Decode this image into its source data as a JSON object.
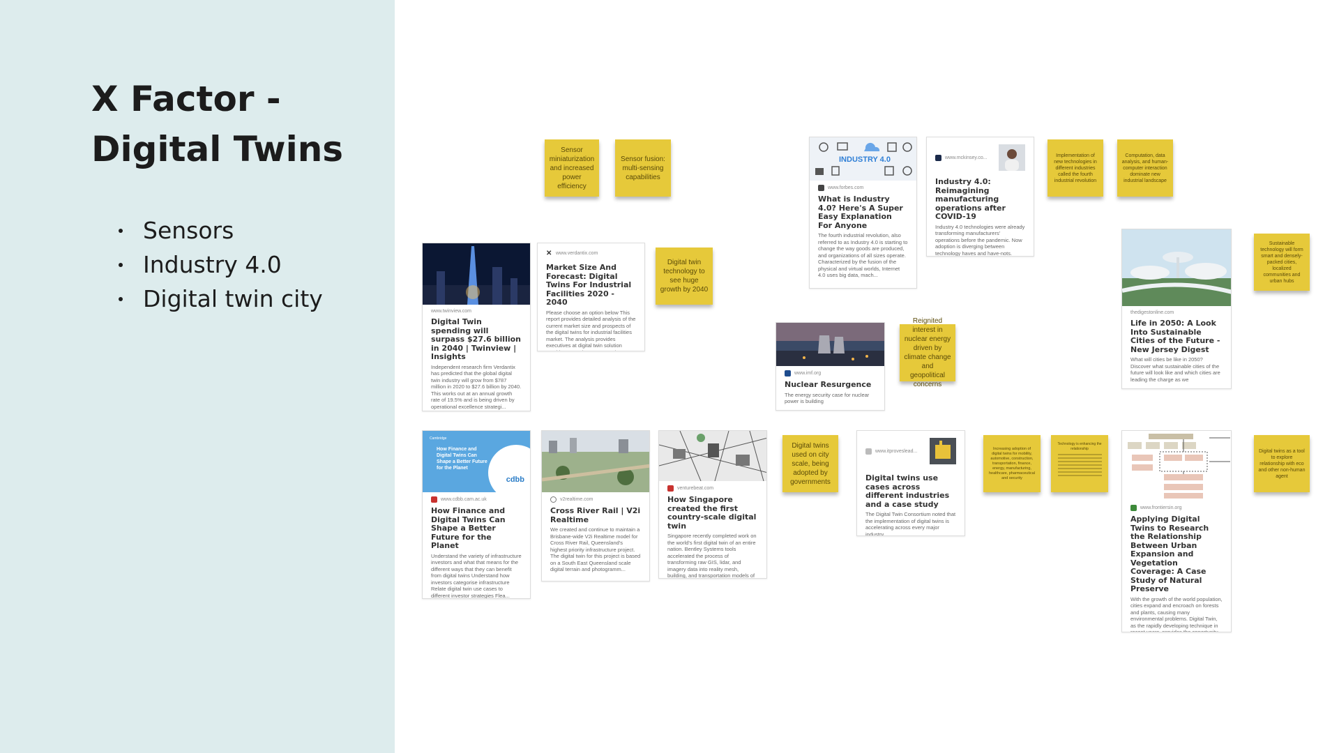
{
  "slide": {
    "title": "X Factor - Digital Twins",
    "bullets": [
      "Sensors",
      "Industry 4.0",
      "Digital twin city"
    ]
  },
  "stickies": [
    {
      "text": "Sensor miniaturization and increased power efficiency"
    },
    {
      "text": "Sensor fusion: multi-sensing capabilities"
    },
    {
      "text": "Implementation of new technologies in different industries called the fourth industrial revolution"
    },
    {
      "text": "Computation, data analysis, and human-computer interaction dominate new industrial landscape"
    },
    {
      "text": "Digital twin technology to see huge growth by 2040"
    },
    {
      "text": "Reignited interest in nuclear energy driven by climate change and geopolitical concerns"
    },
    {
      "text": "Sustainable technology will form smart and densely-packed cities, localized communities and urban hubs"
    },
    {
      "text": "Digital twins used on city scale, being adopted by governments"
    },
    {
      "text": "Increasing adoption of digital twins for mobility, automotive, construction, transportation, finance, energy, manufacturing, healthcare, pharmaceutical and security"
    },
    {
      "text": "Technology is enhancing the relationship"
    },
    {
      "text": "Digital twins as a tool to explore relationship with eco and other non-human agent"
    }
  ],
  "cards": {
    "industry40_what": {
      "thumb_label": "INDUSTRY 4.0",
      "source": "www.forbes.com",
      "title": "What is Industry 4.0? Here's A Super Easy Explanation For Anyone",
      "desc": "The fourth industrial revolution, also referred to as Industry 4.0 is starting to change the way goods are produced, and organizations of all sizes operate. Characterized by the fusion of the physical and virtual worlds, Internet 4.0 uses big data, mach..."
    },
    "industry40_reimagining": {
      "source": "www.mckinsey.co...",
      "title": "Industry 4.0: Reimagining manufacturing operations after COVID-19",
      "desc": "Industry 4.0 technologies were already transforming manufacturers' operations before the pandemic. Now adoption is diverging between technology haves and have-nots."
    },
    "twinview": {
      "source": "www.twinview.com",
      "title": "Digital Twin spending will surpass $27.6 billion in 2040 | Twinview | Insights",
      "desc": "Independent research firm Verdantix has predicted that the global digital twin industry will grow from $787 million in 2020 to $27.6 billion by 2040. This works out at an annual growth rate of 19.5% and is being driven by operational excellence strategi..."
    },
    "verdantix": {
      "source": "www.verdantix.com",
      "title": "Market Size And Forecast: Digital Twins For Industrial Facilities 2020 - 2040",
      "desc": "Please choose an option below This report provides detailed analysis of the current market size and prospects of the digital twins for industrial facilities market. The analysis provides executives at digital twin solution providers, practice managers i..."
    },
    "nuclear": {
      "source": "www.imf.org",
      "title": "Nuclear Resurgence",
      "desc": "The energy security case for nuclear power is building"
    },
    "life2050": {
      "source": "thedigestonline.com",
      "title": "Life in 2050: A Look Into Sustainable Cities of the Future - New Jersey Digest",
      "desc": "What will cities be like in 2050? Discover what sustainable cities of the future will look like and which cities are leading the charge as we"
    },
    "finance": {
      "thumb_top": "Cambridge",
      "thumb_text": "How Finance and Digital Twins Can Shape a Better Future for the Planet",
      "thumb_logo": "cdbb",
      "source": "www.cdbb.cam.ac.uk",
      "title": "How Finance and Digital Twins Can Shape a Better Future for the Planet",
      "desc": "Understand the variety of infrastructure investors and what that means for the different ways that they can benefit from digital twins Understand how investors categorise infrastructure Relate digital twin use cases to different investor strategies Flea..."
    },
    "crossriver": {
      "source": "v2realtime.com",
      "title": "Cross River Rail | V2i Realtime",
      "desc": "We created and continue to maintain a Brisbane-wide V2i Realtime model for Cross River Rail, Queensland's highest priority infrastructure project. The digital twin for this project is based on a South East Queensland scale digital terrain and photogramm..."
    },
    "singapore": {
      "source": "venturebeat.com",
      "title": "How Singapore created the first country-scale digital twin",
      "desc": "Singapore recently completed work on the world's first digital twin of an entire nation. Bentley Systems tools accelerated the process of transforming raw GIS, lidar, and imagery data into reality mesh, building, and transportation models of the country."
    },
    "usecases": {
      "source": "www.itproveslead...",
      "title": "Digital twins use cases across different industries and a case study",
      "desc": "The Digital Twin Consortium noted that the implementation of digital twins is accelerating across every major industry."
    },
    "urban": {
      "source": "www.frontiersin.org",
      "title": "Applying Digital Twins to Research the Relationship Between Urban Expansion and Vegetation Coverage: A Case Study of Natural Preserve",
      "desc": "With the growth of the world population, cities expand and encroach on forests and plants, causing many environmental problems. Digital Twin, as the rapidly developing technique in recent years, provides the opportunity to implement the specific situati..."
    }
  },
  "colors": {
    "sidebar_bg": "#ddeced",
    "sticky": "#e6c93a",
    "sticky_text": "#5a4a08",
    "cdbb_blue": "#5aa7e0"
  }
}
